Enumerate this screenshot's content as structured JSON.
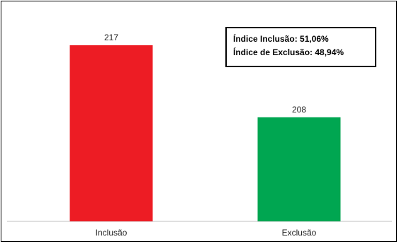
{
  "chart_data": {
    "type": "bar",
    "categories": [
      "Inclusão",
      "Exclusão"
    ],
    "values": [
      217,
      208
    ],
    "data_labels": [
      "217",
      "208"
    ],
    "colors": [
      "#ed1c24",
      "#00a651"
    ],
    "title": "",
    "xlabel": "",
    "ylabel": "",
    "ylim": [
      195,
      220
    ],
    "grid": false,
    "legend": "none"
  },
  "annotation": {
    "line1": "Índice Inclusão: 51,06%",
    "line2": "Índice de Exclusão: 48,94%"
  },
  "axis_color": "#bfbfbf"
}
